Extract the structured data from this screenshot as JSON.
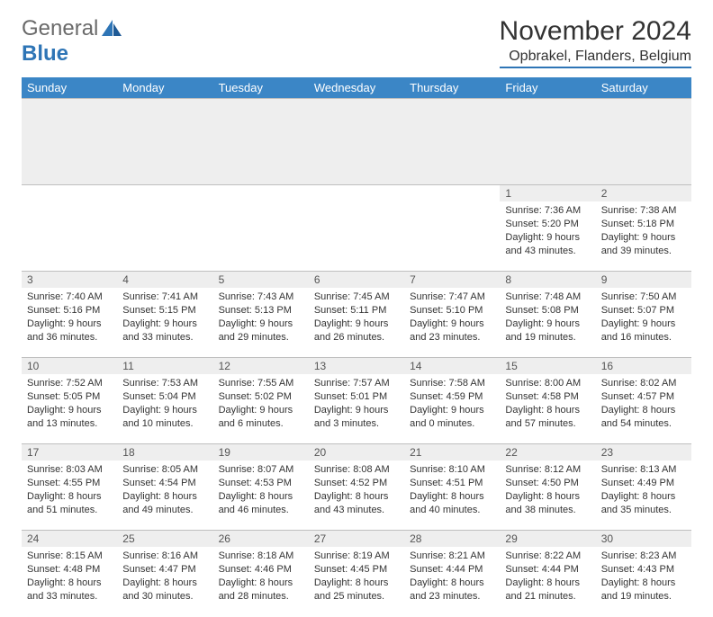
{
  "brand": {
    "word1": "General",
    "word2": "Blue"
  },
  "title": "November 2024",
  "location": "Opbrakel, Flanders, Belgium",
  "colors": {
    "header_bg": "#3b86c6",
    "header_text": "#ffffff",
    "daynum_bg": "#eeeeee",
    "border": "#bfbfbf",
    "accent": "#2e75b6"
  },
  "weekdays": [
    "Sunday",
    "Monday",
    "Tuesday",
    "Wednesday",
    "Thursday",
    "Friday",
    "Saturday"
  ],
  "weeks": [
    [
      {
        "n": "",
        "sunrise": "",
        "sunset": "",
        "day": ""
      },
      {
        "n": "",
        "sunrise": "",
        "sunset": "",
        "day": ""
      },
      {
        "n": "",
        "sunrise": "",
        "sunset": "",
        "day": ""
      },
      {
        "n": "",
        "sunrise": "",
        "sunset": "",
        "day": ""
      },
      {
        "n": "",
        "sunrise": "",
        "sunset": "",
        "day": ""
      },
      {
        "n": "1",
        "sunrise": "Sunrise: 7:36 AM",
        "sunset": "Sunset: 5:20 PM",
        "day": "Daylight: 9 hours and 43 minutes."
      },
      {
        "n": "2",
        "sunrise": "Sunrise: 7:38 AM",
        "sunset": "Sunset: 5:18 PM",
        "day": "Daylight: 9 hours and 39 minutes."
      }
    ],
    [
      {
        "n": "3",
        "sunrise": "Sunrise: 7:40 AM",
        "sunset": "Sunset: 5:16 PM",
        "day": "Daylight: 9 hours and 36 minutes."
      },
      {
        "n": "4",
        "sunrise": "Sunrise: 7:41 AM",
        "sunset": "Sunset: 5:15 PM",
        "day": "Daylight: 9 hours and 33 minutes."
      },
      {
        "n": "5",
        "sunrise": "Sunrise: 7:43 AM",
        "sunset": "Sunset: 5:13 PM",
        "day": "Daylight: 9 hours and 29 minutes."
      },
      {
        "n": "6",
        "sunrise": "Sunrise: 7:45 AM",
        "sunset": "Sunset: 5:11 PM",
        "day": "Daylight: 9 hours and 26 minutes."
      },
      {
        "n": "7",
        "sunrise": "Sunrise: 7:47 AM",
        "sunset": "Sunset: 5:10 PM",
        "day": "Daylight: 9 hours and 23 minutes."
      },
      {
        "n": "8",
        "sunrise": "Sunrise: 7:48 AM",
        "sunset": "Sunset: 5:08 PM",
        "day": "Daylight: 9 hours and 19 minutes."
      },
      {
        "n": "9",
        "sunrise": "Sunrise: 7:50 AM",
        "sunset": "Sunset: 5:07 PM",
        "day": "Daylight: 9 hours and 16 minutes."
      }
    ],
    [
      {
        "n": "10",
        "sunrise": "Sunrise: 7:52 AM",
        "sunset": "Sunset: 5:05 PM",
        "day": "Daylight: 9 hours and 13 minutes."
      },
      {
        "n": "11",
        "sunrise": "Sunrise: 7:53 AM",
        "sunset": "Sunset: 5:04 PM",
        "day": "Daylight: 9 hours and 10 minutes."
      },
      {
        "n": "12",
        "sunrise": "Sunrise: 7:55 AM",
        "sunset": "Sunset: 5:02 PM",
        "day": "Daylight: 9 hours and 6 minutes."
      },
      {
        "n": "13",
        "sunrise": "Sunrise: 7:57 AM",
        "sunset": "Sunset: 5:01 PM",
        "day": "Daylight: 9 hours and 3 minutes."
      },
      {
        "n": "14",
        "sunrise": "Sunrise: 7:58 AM",
        "sunset": "Sunset: 4:59 PM",
        "day": "Daylight: 9 hours and 0 minutes."
      },
      {
        "n": "15",
        "sunrise": "Sunrise: 8:00 AM",
        "sunset": "Sunset: 4:58 PM",
        "day": "Daylight: 8 hours and 57 minutes."
      },
      {
        "n": "16",
        "sunrise": "Sunrise: 8:02 AM",
        "sunset": "Sunset: 4:57 PM",
        "day": "Daylight: 8 hours and 54 minutes."
      }
    ],
    [
      {
        "n": "17",
        "sunrise": "Sunrise: 8:03 AM",
        "sunset": "Sunset: 4:55 PM",
        "day": "Daylight: 8 hours and 51 minutes."
      },
      {
        "n": "18",
        "sunrise": "Sunrise: 8:05 AM",
        "sunset": "Sunset: 4:54 PM",
        "day": "Daylight: 8 hours and 49 minutes."
      },
      {
        "n": "19",
        "sunrise": "Sunrise: 8:07 AM",
        "sunset": "Sunset: 4:53 PM",
        "day": "Daylight: 8 hours and 46 minutes."
      },
      {
        "n": "20",
        "sunrise": "Sunrise: 8:08 AM",
        "sunset": "Sunset: 4:52 PM",
        "day": "Daylight: 8 hours and 43 minutes."
      },
      {
        "n": "21",
        "sunrise": "Sunrise: 8:10 AM",
        "sunset": "Sunset: 4:51 PM",
        "day": "Daylight: 8 hours and 40 minutes."
      },
      {
        "n": "22",
        "sunrise": "Sunrise: 8:12 AM",
        "sunset": "Sunset: 4:50 PM",
        "day": "Daylight: 8 hours and 38 minutes."
      },
      {
        "n": "23",
        "sunrise": "Sunrise: 8:13 AM",
        "sunset": "Sunset: 4:49 PM",
        "day": "Daylight: 8 hours and 35 minutes."
      }
    ],
    [
      {
        "n": "24",
        "sunrise": "Sunrise: 8:15 AM",
        "sunset": "Sunset: 4:48 PM",
        "day": "Daylight: 8 hours and 33 minutes."
      },
      {
        "n": "25",
        "sunrise": "Sunrise: 8:16 AM",
        "sunset": "Sunset: 4:47 PM",
        "day": "Daylight: 8 hours and 30 minutes."
      },
      {
        "n": "26",
        "sunrise": "Sunrise: 8:18 AM",
        "sunset": "Sunset: 4:46 PM",
        "day": "Daylight: 8 hours and 28 minutes."
      },
      {
        "n": "27",
        "sunrise": "Sunrise: 8:19 AM",
        "sunset": "Sunset: 4:45 PM",
        "day": "Daylight: 8 hours and 25 minutes."
      },
      {
        "n": "28",
        "sunrise": "Sunrise: 8:21 AM",
        "sunset": "Sunset: 4:44 PM",
        "day": "Daylight: 8 hours and 23 minutes."
      },
      {
        "n": "29",
        "sunrise": "Sunrise: 8:22 AM",
        "sunset": "Sunset: 4:44 PM",
        "day": "Daylight: 8 hours and 21 minutes."
      },
      {
        "n": "30",
        "sunrise": "Sunrise: 8:23 AM",
        "sunset": "Sunset: 4:43 PM",
        "day": "Daylight: 8 hours and 19 minutes."
      }
    ]
  ]
}
